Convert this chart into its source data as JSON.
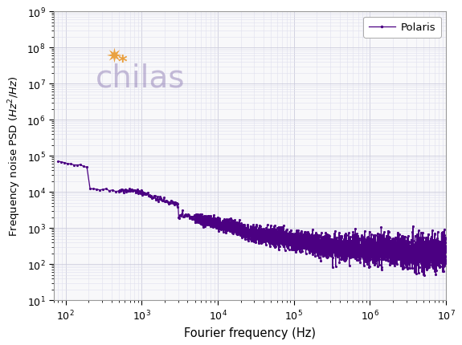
{
  "xlabel": "Fourier frequency (Hz)",
  "ylabel": "Frequency noise PSD ($Hz^{2}/Hz$)",
  "line_color": "#4b0082",
  "legend_label": "Polaris",
  "xlim": [
    70,
    10000000.0
  ],
  "ylim": [
    10,
    1000000000.0
  ],
  "background_color": "#f8f8fa",
  "grid_major_color": "#ccccdd",
  "grid_minor_color": "#e0e0ee",
  "logo_text": "chilas",
  "logo_color": "#9988bb",
  "logo_fontsize": 28,
  "logo_alpha": 0.55,
  "sunburst_color": "#e8901a",
  "marker_size": 2.5,
  "line_width": 0.9
}
